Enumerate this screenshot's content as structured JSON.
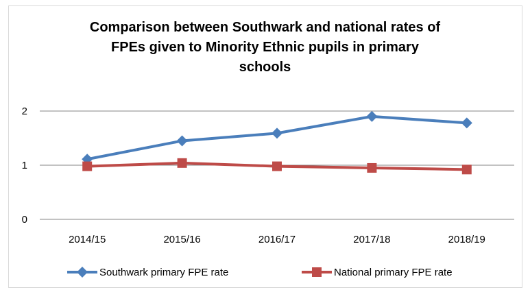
{
  "chart_data": {
    "type": "line",
    "title_lines": [
      "Comparison between Southwark and national rates of",
      "FPEs given to Minority Ethnic pupils in primary",
      "schools"
    ],
    "categories": [
      "2014/15",
      "2015/16",
      "2016/17",
      "2017/18",
      "2018/19"
    ],
    "ylim": [
      0,
      2
    ],
    "yticks": [
      0,
      1,
      2
    ],
    "grid": true,
    "legend_position": "bottom",
    "series": [
      {
        "name": "Southwark primary FPE rate",
        "values": [
          1.11,
          1.45,
          1.59,
          1.9,
          1.78
        ],
        "color": "#4a7ebb",
        "marker": "diamond"
      },
      {
        "name": "National primary FPE rate",
        "values": [
          0.98,
          1.04,
          0.98,
          0.95,
          0.92
        ],
        "color": "#be4b48",
        "marker": "square"
      }
    ]
  }
}
